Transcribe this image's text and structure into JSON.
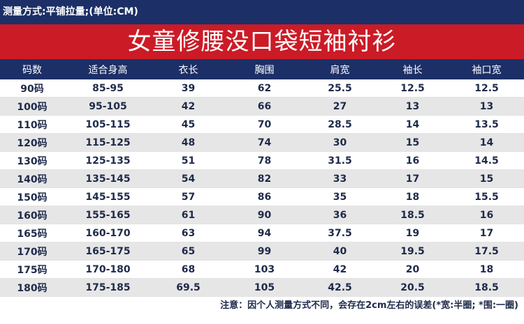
{
  "header": {
    "measure_text": "测量方式:平铺拉量;(单位:CM)",
    "title": "女童修腰没口袋短袖衬衫"
  },
  "colors": {
    "navy": "#1c2f66",
    "red": "#cb1b26",
    "row_alt": "#e6e6e6",
    "text": "#1e2a4a"
  },
  "table": {
    "columns": [
      "码数",
      "适合身高",
      "衣长",
      "胸围",
      "肩宽",
      "袖长",
      "袖口宽"
    ],
    "rows": [
      [
        "90码",
        "85-95",
        "39",
        "62",
        "25.5",
        "12.5",
        "12.5"
      ],
      [
        "100码",
        "95-105",
        "42",
        "66",
        "27",
        "13",
        "13"
      ],
      [
        "110码",
        "105-115",
        "45",
        "70",
        "28.5",
        "14",
        "13.5"
      ],
      [
        "120码",
        "115-125",
        "48",
        "74",
        "30",
        "15",
        "14"
      ],
      [
        "130码",
        "125-135",
        "51",
        "78",
        "31.5",
        "16",
        "14.5"
      ],
      [
        "140码",
        "135-145",
        "54",
        "82",
        "33",
        "17",
        "15"
      ],
      [
        "150码",
        "145-155",
        "57",
        "86",
        "35",
        "18",
        "15.5"
      ],
      [
        "160码",
        "155-165",
        "61",
        "90",
        "36",
        "18.5",
        "16"
      ],
      [
        "165码",
        "160-170",
        "63",
        "94",
        "37.5",
        "19",
        "17"
      ],
      [
        "170码",
        "165-175",
        "65",
        "99",
        "40",
        "19.5",
        "17.5"
      ],
      [
        "175码",
        "170-180",
        "68",
        "103",
        "42",
        "20",
        "18"
      ],
      [
        "180码",
        "175-185",
        "69.5",
        "105",
        "42.5",
        "20.5",
        "18.5"
      ]
    ]
  },
  "footer": {
    "note": "注意：因个人测量方式不同，会存在2cm左右的误差(*宽:半圈; *围:一圈)"
  }
}
